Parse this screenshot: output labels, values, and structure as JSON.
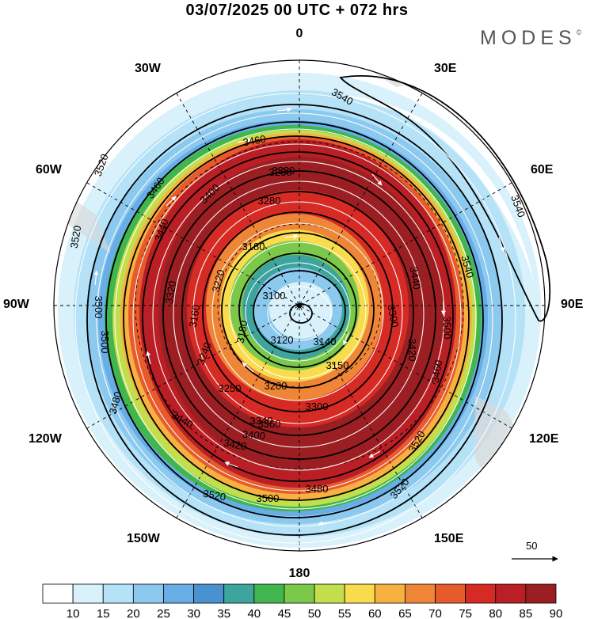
{
  "header": {
    "title": "03/07/2025  00 UTC  + 072 hrs",
    "brand": "MODES",
    "brand_mark": "©"
  },
  "map": {
    "projection": "south-polar-stereographic",
    "longitude_labels": {
      "top": "0",
      "bottom": "180",
      "left": "90W",
      "right": "90E",
      "upper_left_1": "30W",
      "upper_left_2": "60W",
      "upper_right_1": "30E",
      "upper_right_2": "60E",
      "lower_left_1": "120W",
      "lower_left_2": "150W",
      "lower_right_1": "120E",
      "lower_right_2": "150E"
    },
    "contour_labels": [
      "3540",
      "3540",
      "3540",
      "3520",
      "3520",
      "3520",
      "3520",
      "3520",
      "3500",
      "3500",
      "3500",
      "3500",
      "3480",
      "3480",
      "3460",
      "3460",
      "3460",
      "3440",
      "3440",
      "3440",
      "3420",
      "3420",
      "3400",
      "3400",
      "3380",
      "3360",
      "3340",
      "3320",
      "3300",
      "3300",
      "3280",
      "3260",
      "3250",
      "3240",
      "3220",
      "3200",
      "3180",
      "3180",
      "3160",
      "3150",
      "3140",
      "3120",
      "3100"
    ],
    "wind_reference": "50"
  },
  "colorbar": {
    "colors": [
      "#ffffff",
      "#d8f1fb",
      "#b5e2f7",
      "#8cc9ef",
      "#68ade6",
      "#4a91cf",
      "#3ea49e",
      "#41b54e",
      "#7cc84a",
      "#c3de4c",
      "#f8dc4d",
      "#f6b140",
      "#ef8637",
      "#e65a2c",
      "#d62b25",
      "#b91f24",
      "#9b1f22"
    ],
    "labels": [
      "10",
      "15",
      "20",
      "25",
      "30",
      "35",
      "40",
      "45",
      "50",
      "55",
      "60",
      "65",
      "70",
      "75",
      "80",
      "85",
      "90"
    ]
  }
}
